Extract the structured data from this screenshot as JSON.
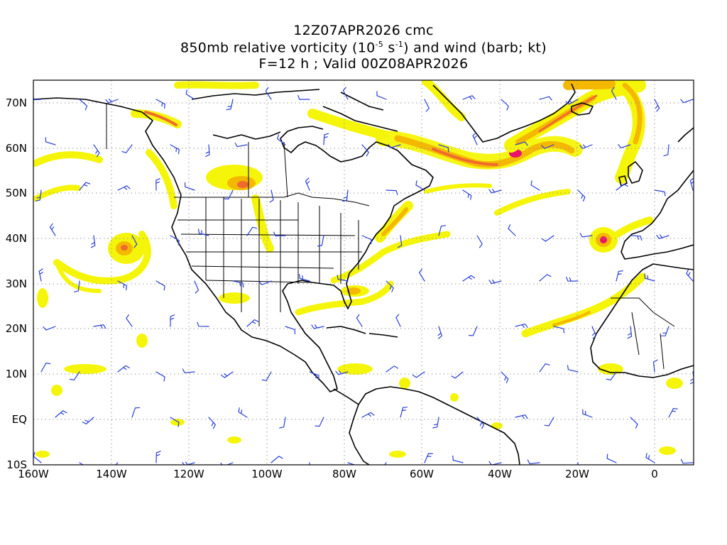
{
  "titles": {
    "run": "12Z07APR2026 cmc",
    "field_prefix": "850mb relative vorticity (10",
    "field_exp1": "-5",
    "field_mid": " s",
    "field_exp2": "-1",
    "field_suffix": ") and wind (barb; kt)",
    "forecast": "F=12 h ; Valid 00Z08APR2026"
  },
  "lat_labels": [
    "70N",
    "60N",
    "50N",
    "40N",
    "30N",
    "20N",
    "10N",
    "EQ",
    "10S"
  ],
  "lon_labels": [
    "160W",
    "140W",
    "120W",
    "100W",
    "80W",
    "60W",
    "40W",
    "20W",
    "0"
  ],
  "colors": {
    "shade_low": "#f5f50a",
    "shade_mid": "#f5b800",
    "shade_high": "#f06a30",
    "shade_peak": "#e8136a",
    "coast": "#000000",
    "barb": "#2b3fd6",
    "grid": "#9a9a9a"
  }
}
